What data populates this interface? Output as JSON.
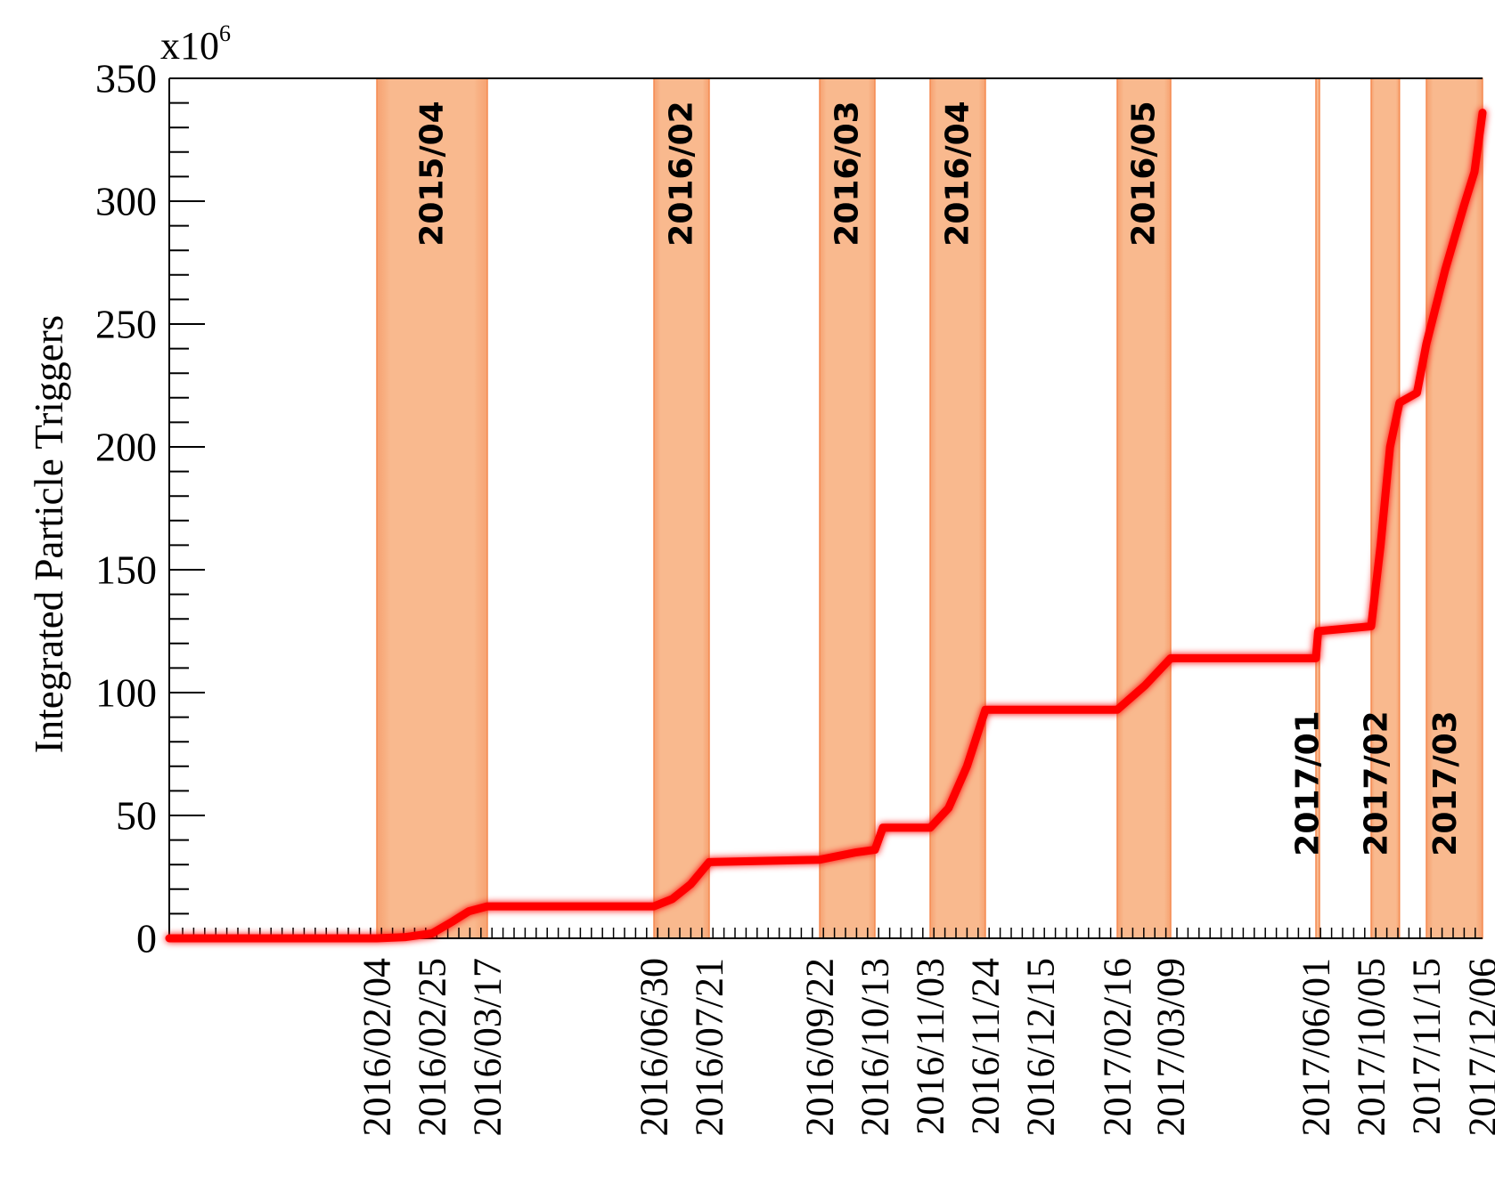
{
  "chart_data": {
    "type": "line",
    "title": "",
    "exponent_label": "x10",
    "exponent_power": "6",
    "ylabel": "Integrated Particle Triggers",
    "xlabel": "",
    "ylim": [
      0,
      350
    ],
    "y_ticks": [
      0,
      50,
      100,
      150,
      200,
      250,
      300,
      350
    ],
    "x_tick_labels": [
      "2016/02/04",
      "2016/02/25",
      "2016/03/17",
      "2016/06/30",
      "2016/07/21",
      "2016/09/22",
      "2016/10/13",
      "2016/11/03",
      "2016/11/24",
      "2016/12/15",
      "2017/02/16",
      "2017/03/09",
      "2017/06/01",
      "2017/10/05",
      "2017/11/15",
      "2017/12/06"
    ],
    "periods": [
      {
        "label": "2015/04",
        "start": "2016/02/04",
        "end": "2016/03/17"
      },
      {
        "label": "2016/02",
        "start": "2016/06/30",
        "end": "2016/07/21"
      },
      {
        "label": "2016/03",
        "start": "2016/09/22",
        "end": "2016/10/13"
      },
      {
        "label": "2016/04",
        "start": "2016/11/03",
        "end": "2016/11/24"
      },
      {
        "label": "2016/05",
        "start": "2017/02/16",
        "end": "2017/03/09"
      },
      {
        "label": "2017/01",
        "start": "2017/06/01",
        "end": "2017/06/06"
      },
      {
        "label": "2017/02",
        "start": "2017/10/05",
        "end": "2017/10/26"
      },
      {
        "label": "2017/03",
        "start": "2017/11/15",
        "end": "2017/12/06"
      }
    ],
    "series": [
      {
        "color": "#ff0000",
        "points": [
          [
            "2016/02/04",
            0
          ],
          [
            "2016/02/15",
            0.5
          ],
          [
            "2016/02/25",
            2
          ],
          [
            "2016/03/04",
            7
          ],
          [
            "2016/03/10",
            11
          ],
          [
            "2016/03/17",
            13
          ],
          [
            "2016/06/30",
            13
          ],
          [
            "2016/07/07",
            16
          ],
          [
            "2016/07/14",
            22
          ],
          [
            "2016/07/21",
            31
          ],
          [
            "2016/09/22",
            32
          ],
          [
            "2016/10/06",
            35
          ],
          [
            "2016/10/13",
            36
          ],
          [
            "2016/10/16",
            45
          ],
          [
            "2016/11/03",
            45
          ],
          [
            "2016/11/10",
            53
          ],
          [
            "2016/11/17",
            70
          ],
          [
            "2016/11/24",
            93
          ],
          [
            "2017/02/16",
            93
          ],
          [
            "2017/02/27",
            103
          ],
          [
            "2017/03/09",
            114
          ],
          [
            "2017/06/01",
            114
          ],
          [
            "2017/06/06",
            125
          ],
          [
            "2017/10/05",
            127
          ],
          [
            "2017/10/12",
            160
          ],
          [
            "2017/10/19",
            200
          ],
          [
            "2017/10/26",
            218
          ],
          [
            "2017/11/08",
            222
          ],
          [
            "2017/11/15",
            242
          ],
          [
            "2017/11/22",
            272
          ],
          [
            "2017/11/29",
            298
          ],
          [
            "2017/12/03",
            312
          ],
          [
            "2017/12/06",
            336
          ]
        ]
      }
    ],
    "grid": false,
    "legend": "none"
  },
  "colors": {
    "period_fill": "#f7b181",
    "period_edge": "#f58a50",
    "line": "#ff0000",
    "axis": "#000000"
  }
}
